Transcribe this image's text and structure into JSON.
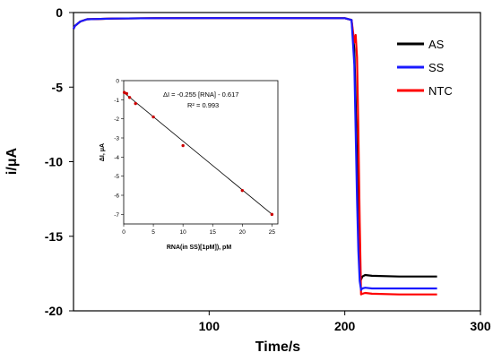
{
  "chart_data": [
    {
      "type": "line",
      "xlabel": "Time/s",
      "ylabel": "i/μA",
      "xlim": [
        0,
        300
      ],
      "ylim": [
        -20,
        0
      ],
      "xticks": [
        "100",
        "200",
        "300"
      ],
      "yticks": [
        "0",
        "-5",
        "-10",
        "-15",
        "-20"
      ],
      "legend_position": "top-right",
      "series": [
        {
          "name": "AS",
          "color": "#000000",
          "x": [
            0,
            1,
            3,
            5,
            10,
            30,
            60,
            100,
            150,
            200,
            205,
            207,
            208,
            209,
            210,
            211,
            212,
            213,
            215,
            220,
            240,
            268
          ],
          "y": [
            -1.1,
            -0.9,
            -0.75,
            -0.6,
            -0.45,
            -0.4,
            -0.38,
            -0.37,
            -0.37,
            -0.38,
            -0.5,
            -2.5,
            -6.0,
            -10.0,
            -14.0,
            -17.0,
            -17.9,
            -17.7,
            -17.6,
            -17.65,
            -17.7,
            -17.7
          ]
        },
        {
          "name": "SS",
          "color": "#1a1aff",
          "x": [
            0,
            1,
            3,
            5,
            10,
            30,
            60,
            100,
            150,
            200,
            205,
            207,
            208,
            209,
            210,
            211,
            212,
            213,
            215,
            220,
            240,
            268
          ],
          "y": [
            -1.1,
            -0.9,
            -0.75,
            -0.6,
            -0.45,
            -0.4,
            -0.38,
            -0.37,
            -0.37,
            -0.38,
            -0.5,
            -3.5,
            -8.0,
            -12.5,
            -16.0,
            -18.0,
            -18.6,
            -18.5,
            -18.45,
            -18.5,
            -18.5,
            -18.5
          ]
        },
        {
          "name": "NTC",
          "color": "#ff0000",
          "x": [
            0,
            1,
            3,
            5,
            10,
            30,
            60,
            100,
            150,
            200,
            205,
            207,
            208,
            209,
            210,
            211,
            212,
            213,
            215,
            220,
            240,
            268
          ],
          "y": [
            -1.1,
            -0.9,
            -0.75,
            -0.6,
            -0.45,
            -0.4,
            -0.38,
            -0.37,
            -0.37,
            -0.38,
            -0.5,
            -2.0,
            -1.5,
            -3.0,
            -8.0,
            -14.0,
            -18.9,
            -18.85,
            -18.8,
            -18.85,
            -18.9,
            -18.9
          ]
        }
      ]
    },
    {
      "type": "scatter",
      "xlabel": "RNA(in SS)[1pM]), pM",
      "ylabel": "ΔI, μA",
      "xlim": [
        0,
        26
      ],
      "ylim": [
        -7.5,
        0
      ],
      "xticks": [
        "0",
        "5",
        "10",
        "15",
        "20",
        "25"
      ],
      "yticks": [
        "0",
        "-1",
        "-2",
        "-3",
        "-4",
        "-5",
        "-6",
        "-7"
      ],
      "annotation_equation": "ΔI = -0.255 [RNA] - 0.617",
      "annotation_r2": "R² = 0.993",
      "fit": {
        "slope": -0.255,
        "intercept": -0.617,
        "color": "#000000"
      },
      "points": {
        "color": "#cc0000",
        "x": [
          0.1,
          0.5,
          1,
          2,
          5,
          10,
          20,
          25
        ],
        "y": [
          -0.62,
          -0.68,
          -0.88,
          -1.2,
          -1.9,
          -3.4,
          -5.75,
          -7.0
        ]
      }
    }
  ]
}
